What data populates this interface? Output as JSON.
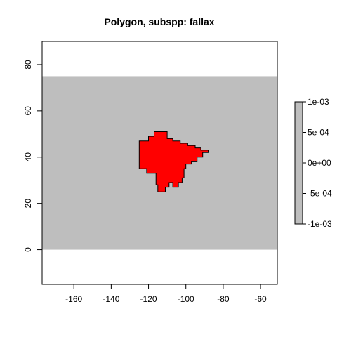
{
  "title": "Polygon, subspp: fallax",
  "colors": {
    "background_raster": "#bebebe",
    "polygon_fill": "#ff0000",
    "polygon_stroke": "#000000",
    "frame": "#000000"
  },
  "chart_data": {
    "type": "map",
    "title": "Polygon, subspp: fallax",
    "xlim": [
      -177,
      -51
    ],
    "ylim": [
      -15,
      90
    ],
    "x_ticks": [
      -160,
      -140,
      -120,
      -100,
      -80,
      -60
    ],
    "y_ticks": [
      0,
      20,
      40,
      60,
      80
    ],
    "x_tick_labels": [
      "-160",
      "-140",
      "-120",
      "-100",
      "-80",
      "-60"
    ],
    "y_tick_labels": [
      "0",
      "20",
      "40",
      "60",
      "80"
    ],
    "raster_extent": {
      "xmin": -177,
      "xmax": -51,
      "ymin": 0,
      "ymax": 75
    },
    "polygon_name": "fallax",
    "polygon": [
      [
        -125,
        47
      ],
      [
        -120,
        47
      ],
      [
        -120,
        49
      ],
      [
        -117,
        49
      ],
      [
        -117,
        51
      ],
      [
        -110,
        51
      ],
      [
        -110,
        48
      ],
      [
        -107,
        48
      ],
      [
        -107,
        47
      ],
      [
        -103,
        47
      ],
      [
        -103,
        46
      ],
      [
        -99,
        46
      ],
      [
        -99,
        45
      ],
      [
        -95,
        45
      ],
      [
        -95,
        44
      ],
      [
        -92,
        44
      ],
      [
        -92,
        43
      ],
      [
        -88,
        43
      ],
      [
        -88,
        42
      ],
      [
        -91,
        42
      ],
      [
        -91,
        40
      ],
      [
        -94,
        40
      ],
      [
        -94,
        38
      ],
      [
        -97,
        38
      ],
      [
        -97,
        37
      ],
      [
        -100,
        37
      ],
      [
        -100,
        35
      ],
      [
        -101,
        35
      ],
      [
        -101,
        31
      ],
      [
        -102,
        31
      ],
      [
        -102,
        29
      ],
      [
        -104,
        29
      ],
      [
        -104,
        27
      ],
      [
        -107,
        27
      ],
      [
        -107,
        29
      ],
      [
        -109,
        29
      ],
      [
        -109,
        27
      ],
      [
        -111,
        27
      ],
      [
        -111,
        25
      ],
      [
        -115,
        25
      ],
      [
        -115,
        28
      ],
      [
        -116,
        28
      ],
      [
        -116,
        33
      ],
      [
        -121,
        33
      ],
      [
        -121,
        35
      ],
      [
        -125,
        35
      ]
    ],
    "colorbar": {
      "range": [
        -0.001,
        0.001
      ],
      "ticks": [
        0.001,
        0.0005,
        0,
        -0.0005,
        -0.001
      ],
      "tick_labels": [
        "1e-03",
        "5e-04",
        "0e+00",
        "-5e-04",
        "-1e-03"
      ],
      "color": "#bebebe"
    }
  }
}
